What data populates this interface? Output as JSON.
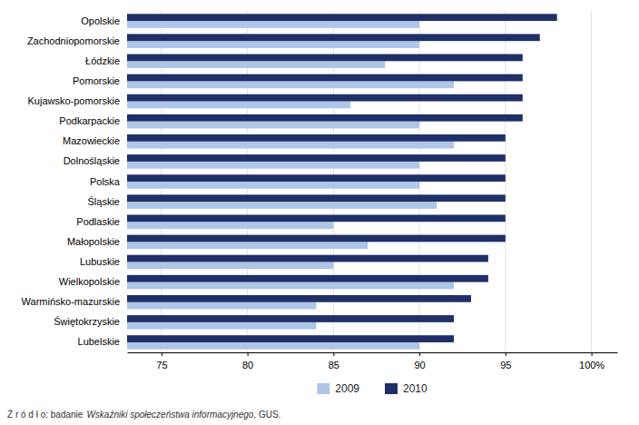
{
  "chart_data": {
    "type": "bar",
    "orientation": "horizontal",
    "categories": [
      "Opolskie",
      "Zachodniopomorskie",
      "Łódzkie",
      "Pomorskie",
      "Kujawsko-pomorskie",
      "Podkarpackie",
      "Mazowieckie",
      "Dolnośląskie",
      "Polska",
      "Śląskie",
      "Podlaskie",
      "Małopolskie",
      "Lubuskie",
      "Wielkopolskie",
      "Warmińsko-mazurskie",
      "Świętokrzyskie",
      "Lubelskie"
    ],
    "series": [
      {
        "name": "2009",
        "color": "#aec6e8",
        "values": [
          90,
          90,
          88,
          92,
          86,
          90,
          92,
          90,
          90,
          91,
          85,
          87,
          85,
          92,
          84,
          84,
          90
        ]
      },
      {
        "name": "2010",
        "color": "#1f3068",
        "values": [
          98,
          97,
          96,
          96,
          96,
          96,
          95,
          95,
          95,
          95,
          95,
          95,
          94,
          94,
          93,
          92,
          92
        ]
      }
    ],
    "xlim": [
      73,
      101.5
    ],
    "xticks": [
      75,
      80,
      85,
      90,
      95,
      {
        "value": 100,
        "label": "100%"
      }
    ],
    "grid": true,
    "legend": "bottom",
    "annotations": [
      "Ź r ó d ł o: badanie",
      "Wskaźniki społeczeństwa informacyjnego",
      ", GUS."
    ]
  }
}
